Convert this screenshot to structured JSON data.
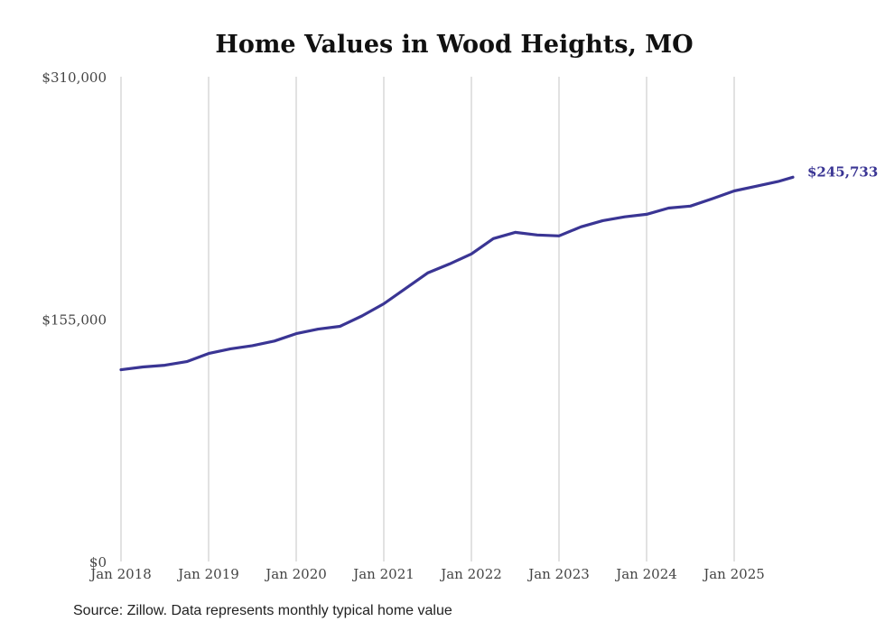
{
  "chart_data": {
    "type": "line",
    "title": "Home Values in Wood Heights, MO",
    "xlabel": "",
    "ylabel": "",
    "ylim": [
      0,
      310000
    ],
    "xlim": [
      2018.0,
      2025.67
    ],
    "grid": "vertical",
    "y_ticks": [
      {
        "value": 0,
        "label": "$0"
      },
      {
        "value": 155000,
        "label": "$155,000"
      },
      {
        "value": 310000,
        "label": "$310,000"
      }
    ],
    "x_ticks": [
      {
        "value": 2018,
        "label": "Jan 2018"
      },
      {
        "value": 2019,
        "label": "Jan 2019"
      },
      {
        "value": 2020,
        "label": "Jan 2020"
      },
      {
        "value": 2021,
        "label": "Jan 2021"
      },
      {
        "value": 2022,
        "label": "Jan 2022"
      },
      {
        "value": 2023,
        "label": "Jan 2023"
      },
      {
        "value": 2024,
        "label": "Jan 2024"
      },
      {
        "value": 2025,
        "label": "Jan 2025"
      }
    ],
    "series": [
      {
        "name": "Typical home value",
        "color": "#3a3594",
        "x": [
          2018.0,
          2018.25,
          2018.5,
          2018.75,
          2019.0,
          2019.25,
          2019.5,
          2019.75,
          2020.0,
          2020.25,
          2020.5,
          2020.75,
          2021.0,
          2021.25,
          2021.5,
          2021.75,
          2022.0,
          2022.25,
          2022.5,
          2022.75,
          2023.0,
          2023.25,
          2023.5,
          2023.75,
          2024.0,
          2024.25,
          2024.5,
          2024.75,
          2025.0,
          2025.25,
          2025.5,
          2025.67
        ],
        "values": [
          122600,
          124400,
          125500,
          127800,
          133000,
          136000,
          138000,
          141000,
          145700,
          148600,
          150400,
          157000,
          164800,
          174700,
          184500,
          190300,
          196700,
          206500,
          210500,
          208800,
          208200,
          214000,
          218000,
          220400,
          222000,
          226000,
          227300,
          232000,
          237000,
          240000,
          243000,
          245733
        ]
      }
    ],
    "end_label": "$245,733"
  },
  "source": "Source: Zillow. Data represents monthly typical home value"
}
